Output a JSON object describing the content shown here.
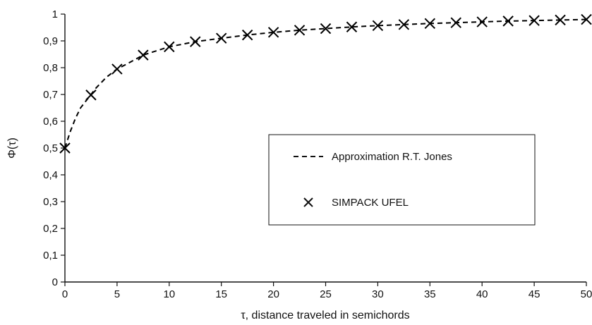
{
  "chart_data": {
    "type": "line",
    "title": "",
    "xlabel": "τ, distance traveled in semichords",
    "ylabel": "Φ(τ)",
    "xlim": [
      0,
      50
    ],
    "ylim": [
      0,
      1
    ],
    "x_ticks": [
      0,
      5,
      10,
      15,
      20,
      25,
      30,
      35,
      40,
      45,
      50
    ],
    "y_ticks": [
      "0",
      "0,1",
      "0,2",
      "0,3",
      "0,4",
      "0,5",
      "0,6",
      "0,7",
      "0,8",
      "0,9",
      "1"
    ],
    "grid": false,
    "legend_position": "center-right",
    "series": [
      {
        "name": "Approximation R.T. Jones",
        "style": "dashed-line",
        "color": "#000000",
        "x": [
          0,
          0.5,
          1,
          1.5,
          2,
          2.5,
          3,
          4,
          5,
          6,
          7.5,
          10,
          12.5,
          15,
          17.5,
          20,
          22.5,
          25,
          27.5,
          30,
          32.5,
          35,
          37.5,
          40,
          42.5,
          45,
          47.5,
          50
        ],
        "y": [
          0.5,
          0.56,
          0.61,
          0.65,
          0.675,
          0.7,
          0.725,
          0.765,
          0.795,
          0.815,
          0.847,
          0.878,
          0.897,
          0.91,
          0.922,
          0.932,
          0.94,
          0.946,
          0.952,
          0.957,
          0.961,
          0.965,
          0.968,
          0.971,
          0.974,
          0.976,
          0.978,
          0.98
        ]
      },
      {
        "name": "SIMPACK UFEL",
        "style": "x-markers",
        "color": "#000000",
        "x": [
          0,
          2.5,
          5,
          7.5,
          10,
          12.5,
          15,
          17.5,
          20,
          22.5,
          25,
          27.5,
          30,
          32.5,
          35,
          37.5,
          40,
          42.5,
          45,
          47.5,
          50
        ],
        "y": [
          0.5,
          0.698,
          0.795,
          0.847,
          0.878,
          0.897,
          0.91,
          0.922,
          0.932,
          0.94,
          0.946,
          0.952,
          0.957,
          0.961,
          0.965,
          0.968,
          0.971,
          0.974,
          0.976,
          0.978,
          0.98
        ]
      }
    ]
  }
}
